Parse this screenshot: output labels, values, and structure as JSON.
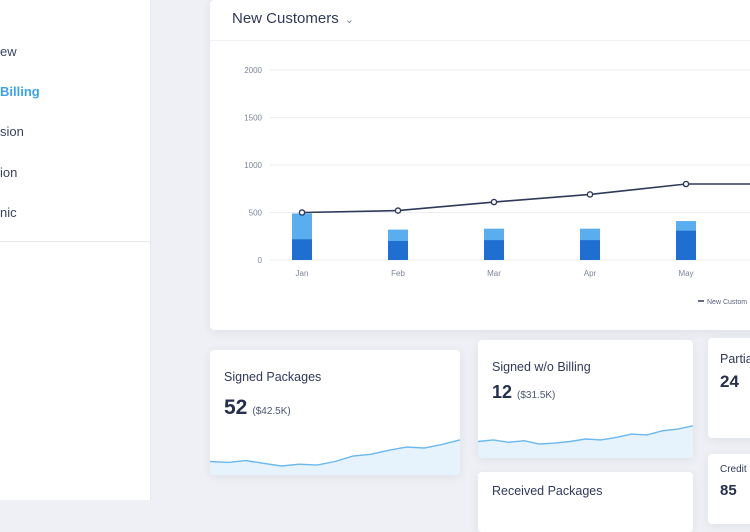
{
  "sidebar": {
    "items": [
      {
        "label": "ew"
      },
      {
        "label": "Billing"
      },
      {
        "label": "sion"
      },
      {
        "label": "ion"
      },
      {
        "label": "nic"
      }
    ]
  },
  "main_chart": {
    "title": "New Customers"
  },
  "chart_data": {
    "type": "bar",
    "categories": [
      "Jan",
      "Feb",
      "Mar",
      "Apr",
      "May"
    ],
    "series": [
      {
        "name": "",
        "kind": "bar-bottom",
        "color": "#1e6fd0",
        "values": [
          220,
          200,
          210,
          210,
          310
        ]
      },
      {
        "name": "",
        "kind": "bar-top",
        "color": "#5aaef0",
        "values": [
          270,
          120,
          120,
          120,
          100
        ]
      },
      {
        "name": "New Customers",
        "kind": "line",
        "color": "#2f3a5a",
        "values": [
          500,
          520,
          610,
          690,
          800
        ]
      }
    ],
    "yticks": [
      "2000",
      "1500",
      "1000",
      "500",
      "0"
    ],
    "ylim": [
      0,
      2000
    ],
    "legend": "bottom-right",
    "legend_label": "New Custom"
  },
  "kpis": [
    {
      "title": "Signed Packages",
      "value": "52",
      "sub": "($42.5K)"
    },
    {
      "title": "Signed w/o Billing",
      "value": "12",
      "sub": "($31.5K)"
    },
    {
      "title": "Partial",
      "value": "24",
      "sub": ""
    },
    {
      "title": "Received Packages",
      "value": "",
      "sub": ""
    },
    {
      "title": "Credit",
      "value": "85",
      "sub": ""
    }
  ],
  "colors": {
    "accent": "#3fa2e8",
    "spark_line": "#6ab8ef",
    "spark_fill": "#e6f3fc"
  }
}
